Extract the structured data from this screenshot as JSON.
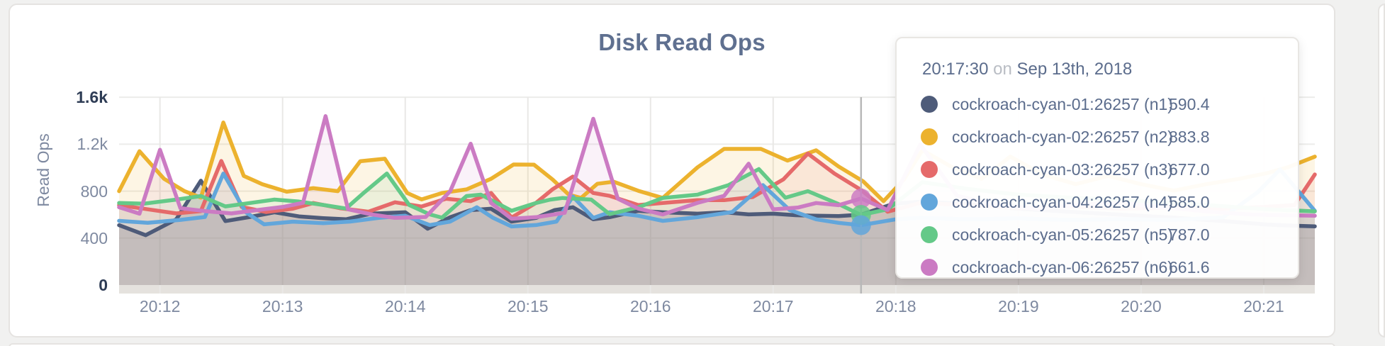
{
  "panel": {
    "accent_border": "#e5e3e1"
  },
  "chart_data": {
    "type": "area",
    "title": "Disk Read Ops",
    "ylabel": "Read Ops",
    "xlabel": "",
    "grid": true,
    "ylim": [
      0,
      1750
    ],
    "y_ticks": [
      {
        "label": "0",
        "value": 0
      },
      {
        "label": "400",
        "value": 400
      },
      {
        "label": "800",
        "value": 800
      },
      {
        "label": "1.2k",
        "value": 1200
      },
      {
        "label": "1.6k",
        "value": 1600
      }
    ],
    "x_ticks": [
      {
        "label": "20:12",
        "t": 20
      },
      {
        "label": "20:13",
        "t": 80
      },
      {
        "label": "20:14",
        "t": 140
      },
      {
        "label": "20:15",
        "t": 200
      },
      {
        "label": "20:16",
        "t": 260
      },
      {
        "label": "20:17",
        "t": 320
      },
      {
        "label": "20:18",
        "t": 380
      },
      {
        "label": "20:19",
        "t": 440
      },
      {
        "label": "20:20",
        "t": 500
      },
      {
        "label": "20:21",
        "t": 560
      }
    ],
    "x_domain_seconds": [
      0,
      585
    ],
    "series": [
      {
        "name": "cockroach-cyan-01:26257 (n1)",
        "color": "#4e5b79",
        "fill_opacity": 0.22,
        "points": [
          [
            0,
            510
          ],
          [
            13,
            425
          ],
          [
            28,
            560
          ],
          [
            40,
            889
          ],
          [
            52,
            545
          ],
          [
            64,
            580
          ],
          [
            76,
            620
          ],
          [
            88,
            585
          ],
          [
            100,
            570
          ],
          [
            111,
            560
          ],
          [
            123,
            608
          ],
          [
            140,
            620
          ],
          [
            151,
            480
          ],
          [
            162,
            578
          ],
          [
            172,
            638
          ],
          [
            182,
            650
          ],
          [
            192,
            541
          ],
          [
            204,
            572
          ],
          [
            213,
            638
          ],
          [
            222,
            663
          ],
          [
            232,
            560
          ],
          [
            240,
            578
          ],
          [
            254,
            632
          ],
          [
            266,
            620
          ],
          [
            283,
            608
          ],
          [
            296,
            620
          ],
          [
            308,
            602
          ],
          [
            320,
            608
          ],
          [
            331,
            595
          ],
          [
            341,
            590
          ],
          [
            352,
            588
          ],
          [
            363,
            600
          ],
          [
            379,
            693
          ],
          [
            393,
            711
          ],
          [
            415,
            690
          ],
          [
            440,
            650
          ],
          [
            465,
            625
          ],
          [
            490,
            600
          ],
          [
            515,
            575
          ],
          [
            540,
            545
          ],
          [
            562,
            515
          ],
          [
            575,
            505
          ],
          [
            585,
            500
          ]
        ]
      },
      {
        "name": "cockroach-cyan-02:26257 (n2)",
        "color": "#ecb22e",
        "fill_opacity": 0.13,
        "points": [
          [
            0,
            800
          ],
          [
            10,
            1140
          ],
          [
            22,
            905
          ],
          [
            32,
            800
          ],
          [
            40,
            745
          ],
          [
            51,
            1385
          ],
          [
            61,
            930
          ],
          [
            70,
            860
          ],
          [
            82,
            795
          ],
          [
            95,
            825
          ],
          [
            107,
            800
          ],
          [
            118,
            1055
          ],
          [
            130,
            1076
          ],
          [
            141,
            784
          ],
          [
            148,
            730
          ],
          [
            158,
            784
          ],
          [
            170,
            815
          ],
          [
            182,
            905
          ],
          [
            193,
            1027
          ],
          [
            203,
            1025
          ],
          [
            212,
            900
          ],
          [
            220,
            770
          ],
          [
            226,
            742
          ],
          [
            234,
            863
          ],
          [
            242,
            880
          ],
          [
            254,
            803
          ],
          [
            266,
            742
          ],
          [
            283,
            1003
          ],
          [
            296,
            1160
          ],
          [
            314,
            1160
          ],
          [
            327,
            1060
          ],
          [
            341,
            1148
          ],
          [
            352,
            1010
          ],
          [
            364,
            884
          ],
          [
            374,
            715
          ],
          [
            384,
            900
          ],
          [
            393,
            1149
          ],
          [
            408,
            1000
          ],
          [
            422,
            905
          ],
          [
            436,
            1095
          ],
          [
            452,
            940
          ],
          [
            468,
            860
          ],
          [
            484,
            930
          ],
          [
            500,
            860
          ],
          [
            516,
            805
          ],
          [
            532,
            860
          ],
          [
            548,
            905
          ],
          [
            562,
            955
          ],
          [
            572,
            1005
          ],
          [
            585,
            1094
          ]
        ]
      },
      {
        "name": "cockroach-cyan-03:26257 (n3)",
        "color": "#e56a6a",
        "fill_opacity": 0.1,
        "points": [
          [
            0,
            681
          ],
          [
            14,
            645
          ],
          [
            28,
            610
          ],
          [
            40,
            630
          ],
          [
            50,
            1057
          ],
          [
            60,
            665
          ],
          [
            72,
            622
          ],
          [
            85,
            650
          ],
          [
            95,
            699
          ],
          [
            108,
            655
          ],
          [
            122,
            625
          ],
          [
            135,
            705
          ],
          [
            148,
            669
          ],
          [
            160,
            735
          ],
          [
            172,
            715
          ],
          [
            182,
            784
          ],
          [
            192,
            575
          ],
          [
            204,
            700
          ],
          [
            212,
            815
          ],
          [
            222,
            924
          ],
          [
            232,
            784
          ],
          [
            240,
            760
          ],
          [
            254,
            681
          ],
          [
            266,
            699
          ],
          [
            283,
            723
          ],
          [
            296,
            723
          ],
          [
            310,
            750
          ],
          [
            325,
            900
          ],
          [
            337,
            1120
          ],
          [
            350,
            950
          ],
          [
            363,
            810
          ],
          [
            376,
            625
          ],
          [
            392,
            700
          ],
          [
            415,
            680
          ],
          [
            440,
            655
          ],
          [
            465,
            670
          ],
          [
            490,
            650
          ],
          [
            515,
            660
          ],
          [
            540,
            650
          ],
          [
            560,
            665
          ],
          [
            575,
            681
          ],
          [
            585,
            942
          ]
        ]
      },
      {
        "name": "cockroach-cyan-04:26257 (n4)",
        "color": "#62a6db",
        "fill_opacity": 0.1,
        "points": [
          [
            0,
            547
          ],
          [
            14,
            530
          ],
          [
            30,
            555
          ],
          [
            42,
            580
          ],
          [
            51,
            950
          ],
          [
            62,
            620
          ],
          [
            71,
            517
          ],
          [
            85,
            540
          ],
          [
            100,
            527
          ],
          [
            113,
            541
          ],
          [
            127,
            572
          ],
          [
            140,
            590
          ],
          [
            152,
            511
          ],
          [
            162,
            541
          ],
          [
            175,
            663
          ],
          [
            183,
            572
          ],
          [
            192,
            499
          ],
          [
            204,
            511
          ],
          [
            214,
            541
          ],
          [
            222,
            754
          ],
          [
            232,
            572
          ],
          [
            240,
            620
          ],
          [
            254,
            590
          ],
          [
            266,
            547
          ],
          [
            283,
            578
          ],
          [
            300,
            622
          ],
          [
            315,
            851
          ],
          [
            328,
            640
          ],
          [
            341,
            560
          ],
          [
            352,
            530
          ],
          [
            363,
            510
          ],
          [
            380,
            560
          ],
          [
            392,
            572
          ],
          [
            415,
            560
          ],
          [
            440,
            568
          ],
          [
            465,
            555
          ],
          [
            490,
            562
          ],
          [
            515,
            555
          ],
          [
            540,
            575
          ],
          [
            557,
            790
          ],
          [
            568,
            985
          ],
          [
            585,
            632
          ]
        ]
      },
      {
        "name": "cockroach-cyan-05:26257 (n5)",
        "color": "#64c988",
        "fill_opacity": 0.1,
        "points": [
          [
            0,
            699
          ],
          [
            12,
            693
          ],
          [
            28,
            728
          ],
          [
            40,
            758
          ],
          [
            52,
            670
          ],
          [
            64,
            699
          ],
          [
            76,
            728
          ],
          [
            88,
            711
          ],
          [
            100,
            682
          ],
          [
            111,
            652
          ],
          [
            120,
            790
          ],
          [
            131,
            950
          ],
          [
            142,
            681
          ],
          [
            152,
            602
          ],
          [
            158,
            574
          ],
          [
            170,
            758
          ],
          [
            177,
            770
          ],
          [
            192,
            633
          ],
          [
            204,
            699
          ],
          [
            211,
            728
          ],
          [
            217,
            742
          ],
          [
            231,
            728
          ],
          [
            240,
            604
          ],
          [
            254,
            663
          ],
          [
            266,
            742
          ],
          [
            283,
            770
          ],
          [
            298,
            850
          ],
          [
            313,
            988
          ],
          [
            326,
            744
          ],
          [
            337,
            800
          ],
          [
            352,
            690
          ],
          [
            363,
            597
          ],
          [
            376,
            645
          ],
          [
            393,
            876
          ],
          [
            415,
            820
          ],
          [
            440,
            770
          ],
          [
            465,
            745
          ],
          [
            490,
            725
          ],
          [
            515,
            700
          ],
          [
            540,
            672
          ],
          [
            562,
            645
          ],
          [
            585,
            628
          ]
        ]
      },
      {
        "name": "cockroach-cyan-06:26257 (n6)",
        "color": "#cb7bc3",
        "fill_opacity": 0.1,
        "points": [
          [
            0,
            663
          ],
          [
            10,
            608
          ],
          [
            20,
            1152
          ],
          [
            30,
            655
          ],
          [
            42,
            630
          ],
          [
            55,
            610
          ],
          [
            68,
            640
          ],
          [
            80,
            665
          ],
          [
            90,
            700
          ],
          [
            101,
            1439
          ],
          [
            112,
            645
          ],
          [
            124,
            600
          ],
          [
            135,
            572
          ],
          [
            150,
            580
          ],
          [
            162,
            800
          ],
          [
            172,
            1204
          ],
          [
            182,
            699
          ],
          [
            192,
            565
          ],
          [
            204,
            578
          ],
          [
            218,
            615
          ],
          [
            232,
            1417
          ],
          [
            244,
            735
          ],
          [
            254,
            651
          ],
          [
            266,
            602
          ],
          [
            283,
            700
          ],
          [
            296,
            760
          ],
          [
            308,
            1034
          ],
          [
            320,
            645
          ],
          [
            332,
            660
          ],
          [
            341,
            699
          ],
          [
            352,
            680
          ],
          [
            363,
            737
          ],
          [
            376,
            640
          ],
          [
            392,
            1198
          ],
          [
            410,
            760
          ],
          [
            430,
            680
          ],
          [
            450,
            650
          ],
          [
            470,
            685
          ],
          [
            490,
            700
          ],
          [
            512,
            660
          ],
          [
            534,
            625
          ],
          [
            555,
            600
          ],
          [
            570,
            595
          ],
          [
            585,
            590
          ]
        ]
      }
    ]
  },
  "hover": {
    "t": 363,
    "line_color": "#b8b8b8",
    "dots": [
      {
        "series": "cockroach-cyan-06:26257 (n6)",
        "color": "#cb7bc3",
        "value": 737
      },
      {
        "series": "cockroach-cyan-05:26257 (n5)",
        "color": "#64c988",
        "value": 597
      },
      {
        "series": "cockroach-cyan-04:26257 (n4)",
        "color": "#62a6db",
        "value": 510
      }
    ]
  },
  "tooltip": {
    "time": "20:17:30",
    "on_word": "on",
    "date": "Sep 13th, 2018",
    "rows": [
      {
        "label": "cockroach-cyan-01:26257 (n1)",
        "value": "590.4",
        "color": "#4e5b79"
      },
      {
        "label": "cockroach-cyan-02:26257 (n2)",
        "value": "883.8",
        "color": "#ecb22e"
      },
      {
        "label": "cockroach-cyan-03:26257 (n3)",
        "value": "677.0",
        "color": "#e56a6a"
      },
      {
        "label": "cockroach-cyan-04:26257 (n4)",
        "value": "585.0",
        "color": "#62a6db"
      },
      {
        "label": "cockroach-cyan-05:26257 (n5)",
        "value": "787.0",
        "color": "#64c988"
      },
      {
        "label": "cockroach-cyan-06:26257 (n6)",
        "value": "661.6",
        "color": "#cb7bc3"
      }
    ]
  }
}
